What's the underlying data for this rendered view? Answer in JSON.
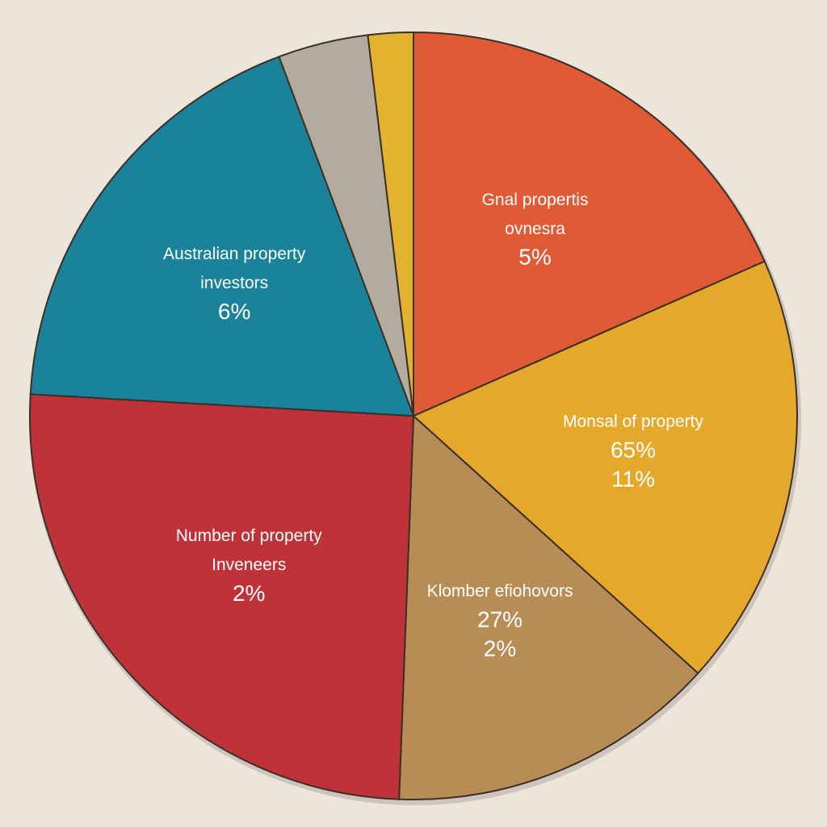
{
  "chart_data": {
    "type": "pie",
    "slices": [
      {
        "label_lines": [
          "Gnal propertis",
          "ovnesra"
        ],
        "percent_labels": [
          "5%"
        ],
        "value": 18.4,
        "color": "#e05a35"
      },
      {
        "label_lines": [
          "Monsal of property"
        ],
        "percent_labels": [
          "65%",
          "11%"
        ],
        "value": 18.3,
        "color": "#e6a82a"
      },
      {
        "label_lines": [
          "Klomber efiohovors"
        ],
        "percent_labels": [
          "27%",
          "2%"
        ],
        "value": 13.9,
        "color": "#b88c55"
      },
      {
        "label_lines": [
          "Number of property",
          "Inveneers"
        ],
        "percent_labels": [
          "2%"
        ],
        "value": 25.3,
        "color": "#c0323a"
      },
      {
        "label_lines": [
          "Australian property",
          "investors"
        ],
        "percent_labels": [
          "6%"
        ],
        "value": 18.4,
        "color": "#1a8399"
      },
      {
        "label_lines": [],
        "percent_labels": [],
        "value": 3.8,
        "color": "#b3aaa0"
      },
      {
        "label_lines": [],
        "percent_labels": [],
        "value": 1.9,
        "color": "#e3b330"
      }
    ]
  }
}
